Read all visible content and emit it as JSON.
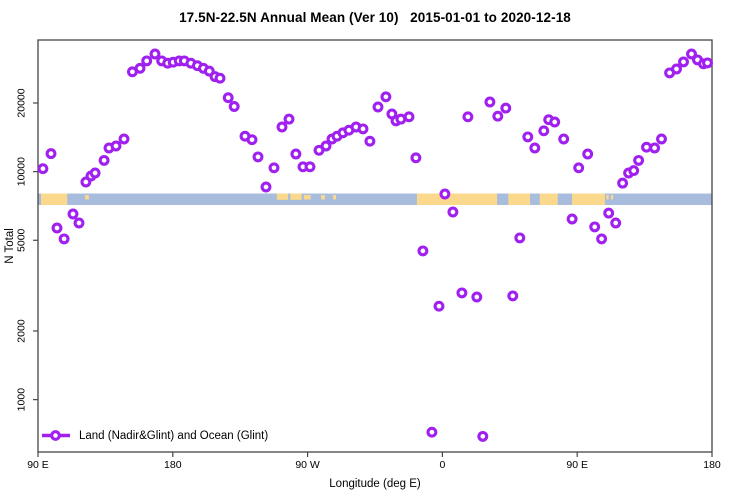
{
  "chart_data": {
    "type": "scatter",
    "title": "17.5N-22.5N Annual Mean (Ver 10)   2015-01-01 to 2020-12-18",
    "xlabel": "Longitude (deg E)",
    "ylabel": "N Total",
    "x_axis": {
      "note": "longitude wraps eastward; plotted coordinate runs 90E -> 180 -> 90W -> 0 -> 90E -> 180",
      "range": [
        90,
        540
      ],
      "ticks": [
        {
          "pos": 90,
          "label": "90 E"
        },
        {
          "pos": 180,
          "label": "180"
        },
        {
          "pos": 270,
          "label": "90 W"
        },
        {
          "pos": 360,
          "label": "0"
        },
        {
          "pos": 450,
          "label": "90 E"
        },
        {
          "pos": 540,
          "label": "180"
        }
      ]
    },
    "y_axis": {
      "scale": "log",
      "range": [
        590,
        37900
      ],
      "ticks": [
        1000,
        2000,
        5000,
        10000,
        20000
      ]
    },
    "legend": {
      "label": "Land (Nadir&Glint) and Ocean (Glint)",
      "position": "bottom-left",
      "marker": "open-circle-on-line"
    },
    "colors": {
      "point": "#a020f0",
      "ocean": "#a8bcde",
      "land": "#fbd98c",
      "frame": "#454545",
      "background": "#ffffff"
    },
    "map_band": {
      "description": "land/ocean surface-type strip across the 17.5N-22.5N latitude belt",
      "value_top": 8050,
      "value_bottom": 7200,
      "base": "ocean",
      "land_segments": [
        {
          "from": 92,
          "to": 109.5,
          "cover": "full"
        },
        {
          "from": 121.5,
          "to": 124,
          "cover": "speck"
        },
        {
          "from": 249.5,
          "to": 257,
          "cover": "top"
        },
        {
          "from": 258.5,
          "to": 266,
          "cover": "top"
        },
        {
          "from": 267.5,
          "to": 272,
          "cover": "speck"
        },
        {
          "from": 279,
          "to": 281.5,
          "cover": "speck"
        },
        {
          "from": 287,
          "to": 289,
          "cover": "speck"
        },
        {
          "from": 343,
          "to": 396.5,
          "cover": "full"
        },
        {
          "from": 404,
          "to": 418.5,
          "cover": "full"
        },
        {
          "from": 425,
          "to": 437,
          "cover": "full"
        },
        {
          "from": 446.5,
          "to": 468.5,
          "cover": "full"
        },
        {
          "from": 469.5,
          "to": 471,
          "cover": "speck"
        },
        {
          "from": 472.5,
          "to": 474,
          "cover": "speck"
        }
      ]
    },
    "points": [
      [
        93.3,
        10300
      ],
      [
        98.7,
        12000
      ],
      [
        102.7,
        5660
      ],
      [
        107.4,
        5070
      ],
      [
        113.4,
        6520
      ],
      [
        117.4,
        5950
      ],
      [
        122.0,
        9010
      ],
      [
        125.4,
        9570
      ],
      [
        128.1,
        9860
      ],
      [
        134.1,
        11200
      ],
      [
        137.4,
        12700
      ],
      [
        142.1,
        12950
      ],
      [
        147.4,
        13900
      ],
      [
        153.0,
        27400
      ],
      [
        158.1,
        28400
      ],
      [
        162.6,
        30600
      ],
      [
        168.1,
        32800
      ],
      [
        172.6,
        30600
      ],
      [
        176.6,
        29900
      ],
      [
        180.3,
        30200
      ],
      [
        184.3,
        30600
      ],
      [
        187.7,
        30600
      ],
      [
        192.1,
        29900
      ],
      [
        196.4,
        29150
      ],
      [
        200.4,
        28400
      ],
      [
        204.4,
        27600
      ],
      [
        208.2,
        26100
      ],
      [
        211.5,
        25700
      ],
      [
        217.0,
        21100
      ],
      [
        221.0,
        19300
      ],
      [
        228.2,
        14300
      ],
      [
        232.9,
        13800
      ],
      [
        236.9,
        11600
      ],
      [
        242.2,
        8560
      ],
      [
        247.6,
        10400
      ],
      [
        252.9,
        15700
      ],
      [
        257.6,
        17000
      ],
      [
        262.2,
        11950
      ],
      [
        266.9,
        10500
      ],
      [
        271.6,
        10500
      ],
      [
        277.6,
        12400
      ],
      [
        282.3,
        12950
      ],
      [
        286.3,
        13900
      ],
      [
        289.6,
        14300
      ],
      [
        293.6,
        14800
      ],
      [
        297.6,
        15200
      ],
      [
        302.3,
        15700
      ],
      [
        307.0,
        15400
      ],
      [
        311.6,
        13600
      ],
      [
        317.0,
        19200
      ],
      [
        322.3,
        21300
      ],
      [
        326.3,
        17900
      ],
      [
        329.0,
        16700
      ],
      [
        332.3,
        17000
      ],
      [
        337.7,
        17400
      ],
      [
        342.3,
        11500
      ],
      [
        347.0,
        4490
      ],
      [
        353.0,
        720
      ],
      [
        357.7,
        2570
      ],
      [
        361.7,
        7980
      ],
      [
        367.0,
        6650
      ],
      [
        373.0,
        2940
      ],
      [
        377.0,
        17400
      ],
      [
        383.0,
        2820
      ],
      [
        387.0,
        690
      ],
      [
        391.7,
        20200
      ],
      [
        397.0,
        17500
      ],
      [
        402.3,
        19000
      ],
      [
        407.0,
        2850
      ],
      [
        411.7,
        5120
      ],
      [
        417.0,
        14200
      ],
      [
        421.7,
        12700
      ],
      [
        427.7,
        15100
      ],
      [
        431.0,
        16900
      ],
      [
        435.0,
        16500
      ],
      [
        441.0,
        13900
      ],
      [
        446.6,
        6200
      ],
      [
        451.0,
        10400
      ],
      [
        457.0,
        11950
      ],
      [
        461.7,
        5720
      ],
      [
        466.3,
        5070
      ],
      [
        471.0,
        6580
      ],
      [
        475.7,
        5950
      ],
      [
        480.3,
        8910
      ],
      [
        484.3,
        9860
      ],
      [
        487.7,
        10100
      ],
      [
        491.0,
        11200
      ],
      [
        496.3,
        12800
      ],
      [
        501.7,
        12700
      ],
      [
        506.3,
        13900
      ],
      [
        511.7,
        27100
      ],
      [
        516.3,
        28200
      ],
      [
        521.0,
        30300
      ],
      [
        526.3,
        32800
      ],
      [
        530.3,
        30900
      ],
      [
        534.3,
        29700
      ],
      [
        537.0,
        30000
      ]
    ]
  }
}
